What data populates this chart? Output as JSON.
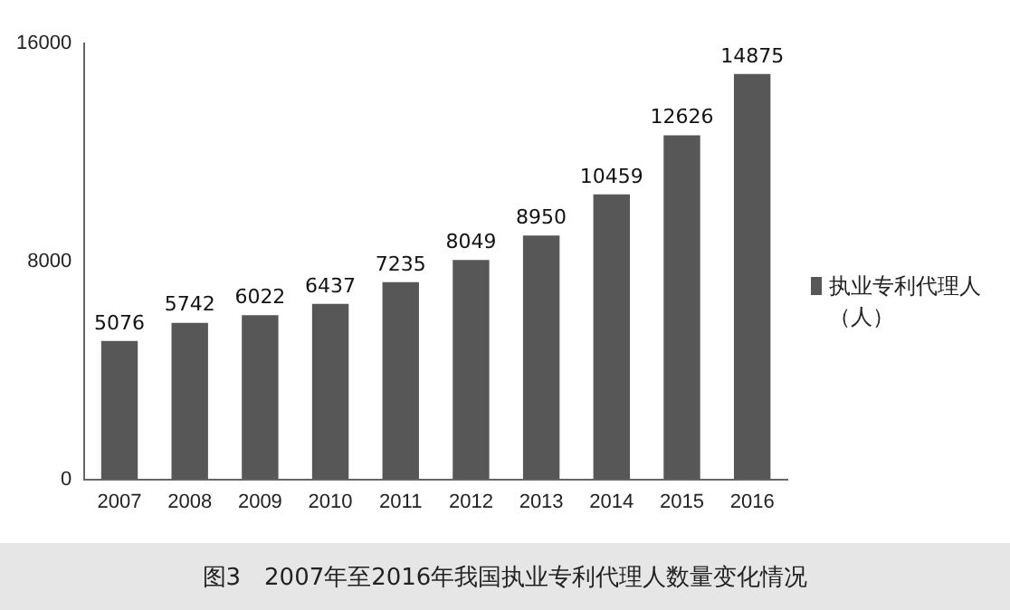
{
  "chart_data": {
    "type": "bar",
    "categories": [
      "2007",
      "2008",
      "2009",
      "2010",
      "2011",
      "2012",
      "2013",
      "2014",
      "2015",
      "2016"
    ],
    "series": [
      {
        "name": "执业专利代理人（人）",
        "color": "#575757",
        "values": [
          5076,
          5742,
          6022,
          6437,
          7235,
          8049,
          8950,
          10459,
          12626,
          14875
        ]
      }
    ],
    "ylim": [
      0,
      16000
    ],
    "yticks": [
      0,
      8000,
      16000
    ],
    "grid": false,
    "legend": "right",
    "data_labels": true,
    "annotations": [
      "图3　2007年至2016年我国执业专利代理人数量变化情况"
    ]
  }
}
